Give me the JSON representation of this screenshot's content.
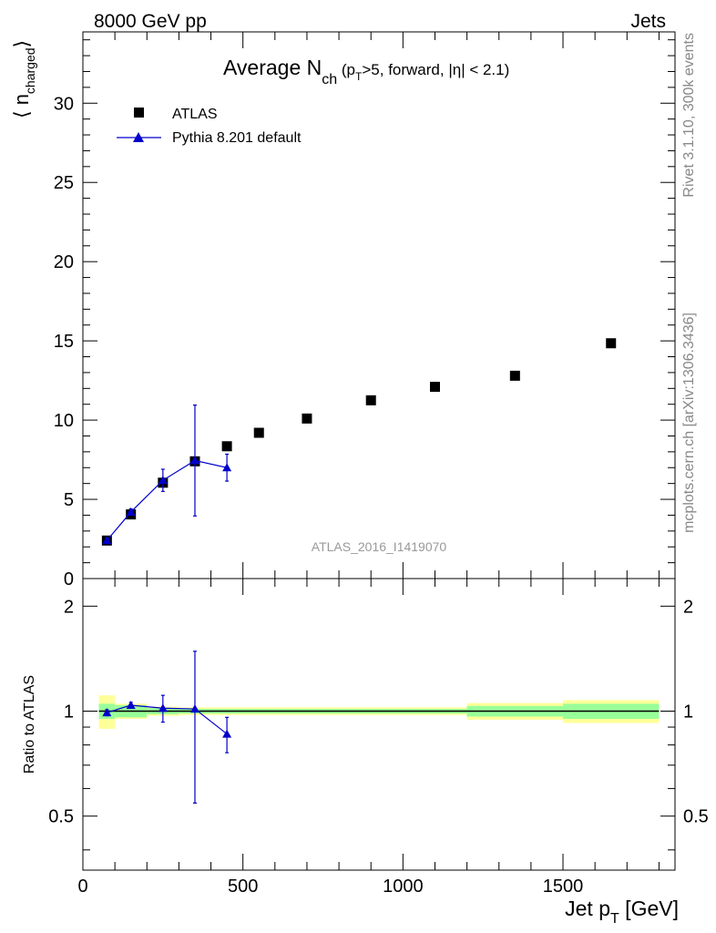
{
  "header": {
    "left": "8000 GeV pp",
    "right": "Jets"
  },
  "side_labels": {
    "top": "Rivet 3.1.10,  300k events",
    "bottom": "mcplots.cern.ch [arXiv:1306.3436]"
  },
  "chart_data": {
    "type": "scatter",
    "title_main": "Average N",
    "title_sub": "ch",
    "title_rest_1": " (p",
    "title_rest_sub": "T",
    "title_rest_2": ">5, forward, |η| < 2.1)",
    "watermark": "ATLAS_2016_I1419070",
    "ylabel_main": "⟨ n",
    "ylabel_sub": "charged",
    "ylabel_close": "⟩",
    "ratio_ylabel": "Ratio to ATLAS",
    "xlabel_main": "Jet p",
    "xlabel_sub": "T",
    "xlabel_rest": " [GeV]",
    "xlim": [
      0,
      1850
    ],
    "ylim": [
      0,
      34.5
    ],
    "ratio_ylim": [
      0.35,
      2.4
    ],
    "x_ticks": [
      "0",
      "500",
      "1000",
      "1500"
    ],
    "y_ticks": [
      "0",
      "5",
      "10",
      "15",
      "20",
      "25",
      "30"
    ],
    "ratio_ticks": [
      "0.5",
      "1",
      "2"
    ],
    "legend": {
      "position": "top-left",
      "entries": [
        "ATLAS",
        "Pythia 8.201 default"
      ]
    },
    "series": [
      {
        "name": "ATLAS",
        "color": "#000000",
        "marker": "square",
        "x": [
          75,
          150,
          250,
          350,
          450,
          550,
          700,
          900,
          1100,
          1350,
          1650
        ],
        "xerr": [
          25,
          50,
          50,
          50,
          50,
          50,
          100,
          100,
          100,
          150,
          150
        ],
        "y": [
          2.4,
          4.05,
          6.05,
          7.4,
          8.35,
          9.2,
          10.1,
          11.25,
          12.1,
          12.8,
          14.85
        ],
        "rel_unc_stat": [
          0.05,
          0.04,
          0.02,
          0.015,
          0.015,
          0.015,
          0.015,
          0.015,
          0.015,
          0.035,
          0.05
        ],
        "rel_unc_total": [
          0.11,
          0.05,
          0.03,
          0.025,
          0.025,
          0.025,
          0.025,
          0.025,
          0.025,
          0.055,
          0.075
        ]
      },
      {
        "name": "Pythia 8.201 default",
        "color": "#0000cc",
        "marker": "triangle",
        "x": [
          75,
          150,
          250,
          350,
          450
        ],
        "y": [
          2.4,
          4.2,
          6.2,
          7.45,
          7.0
        ],
        "yerr": [
          0.15,
          0.2,
          0.7,
          3.5,
          0.85
        ],
        "ratio": [
          0.99,
          1.04,
          1.02,
          1.015,
          0.86
        ],
        "ratio_err": [
          0.02,
          0.02,
          0.09,
          0.47,
          0.1
        ]
      }
    ]
  }
}
